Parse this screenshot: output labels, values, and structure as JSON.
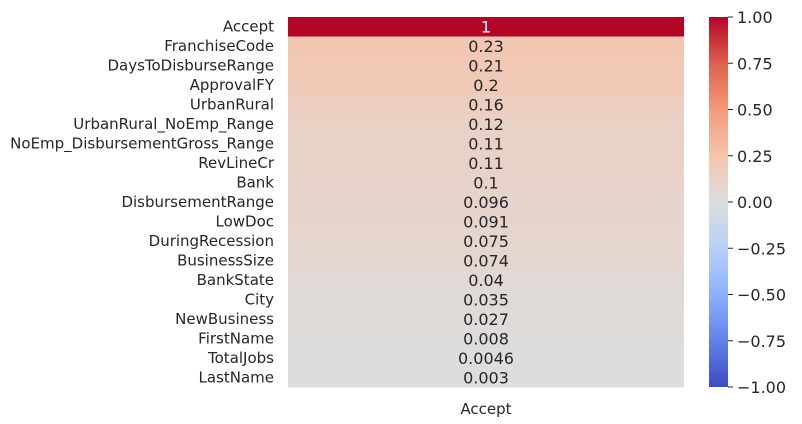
{
  "chart_data": {
    "type": "heatmap",
    "column": "Accept",
    "rows": [
      {
        "label": "Accept",
        "value": 1,
        "annot": "1"
      },
      {
        "label": "FranchiseCode",
        "value": 0.23,
        "annot": "0.23"
      },
      {
        "label": "DaysToDisburseRange",
        "value": 0.21,
        "annot": "0.21"
      },
      {
        "label": "ApprovalFY",
        "value": 0.2,
        "annot": "0.2"
      },
      {
        "label": "UrbanRural",
        "value": 0.16,
        "annot": "0.16"
      },
      {
        "label": "UrbanRural_NoEmp_Range",
        "value": 0.12,
        "annot": "0.12"
      },
      {
        "label": "NoEmp_DisbursementGross_Range",
        "value": 0.11,
        "annot": "0.11"
      },
      {
        "label": "RevLineCr",
        "value": 0.11,
        "annot": "0.11"
      },
      {
        "label": "Bank",
        "value": 0.1,
        "annot": "0.1"
      },
      {
        "label": "DisbursementRange",
        "value": 0.096,
        "annot": "0.096"
      },
      {
        "label": "LowDoc",
        "value": 0.091,
        "annot": "0.091"
      },
      {
        "label": "DuringRecession",
        "value": 0.075,
        "annot": "0.075"
      },
      {
        "label": "BusinessSize",
        "value": 0.074,
        "annot": "0.074"
      },
      {
        "label": "BankState",
        "value": 0.04,
        "annot": "0.04"
      },
      {
        "label": "City",
        "value": 0.035,
        "annot": "0.035"
      },
      {
        "label": "NewBusiness",
        "value": 0.027,
        "annot": "0.027"
      },
      {
        "label": "FirstName",
        "value": 0.008,
        "annot": "0.008"
      },
      {
        "label": "TotalJobs",
        "value": 0.0046,
        "annot": "0.0046"
      },
      {
        "label": "LastName",
        "value": 0.003,
        "annot": "0.003"
      }
    ],
    "colormap": "coolwarm",
    "vmin": -1,
    "vmax": 1,
    "colorbar_ticks": [
      "1.00",
      "0.75",
      "0.50",
      "0.25",
      "0.00",
      "−0.25",
      "−0.50",
      "−0.75",
      "−1.00"
    ],
    "colorbar_tick_values": [
      1,
      0.75,
      0.5,
      0.25,
      0,
      -0.25,
      -0.5,
      -0.75,
      -1
    ],
    "xtick_label": "Accept"
  }
}
